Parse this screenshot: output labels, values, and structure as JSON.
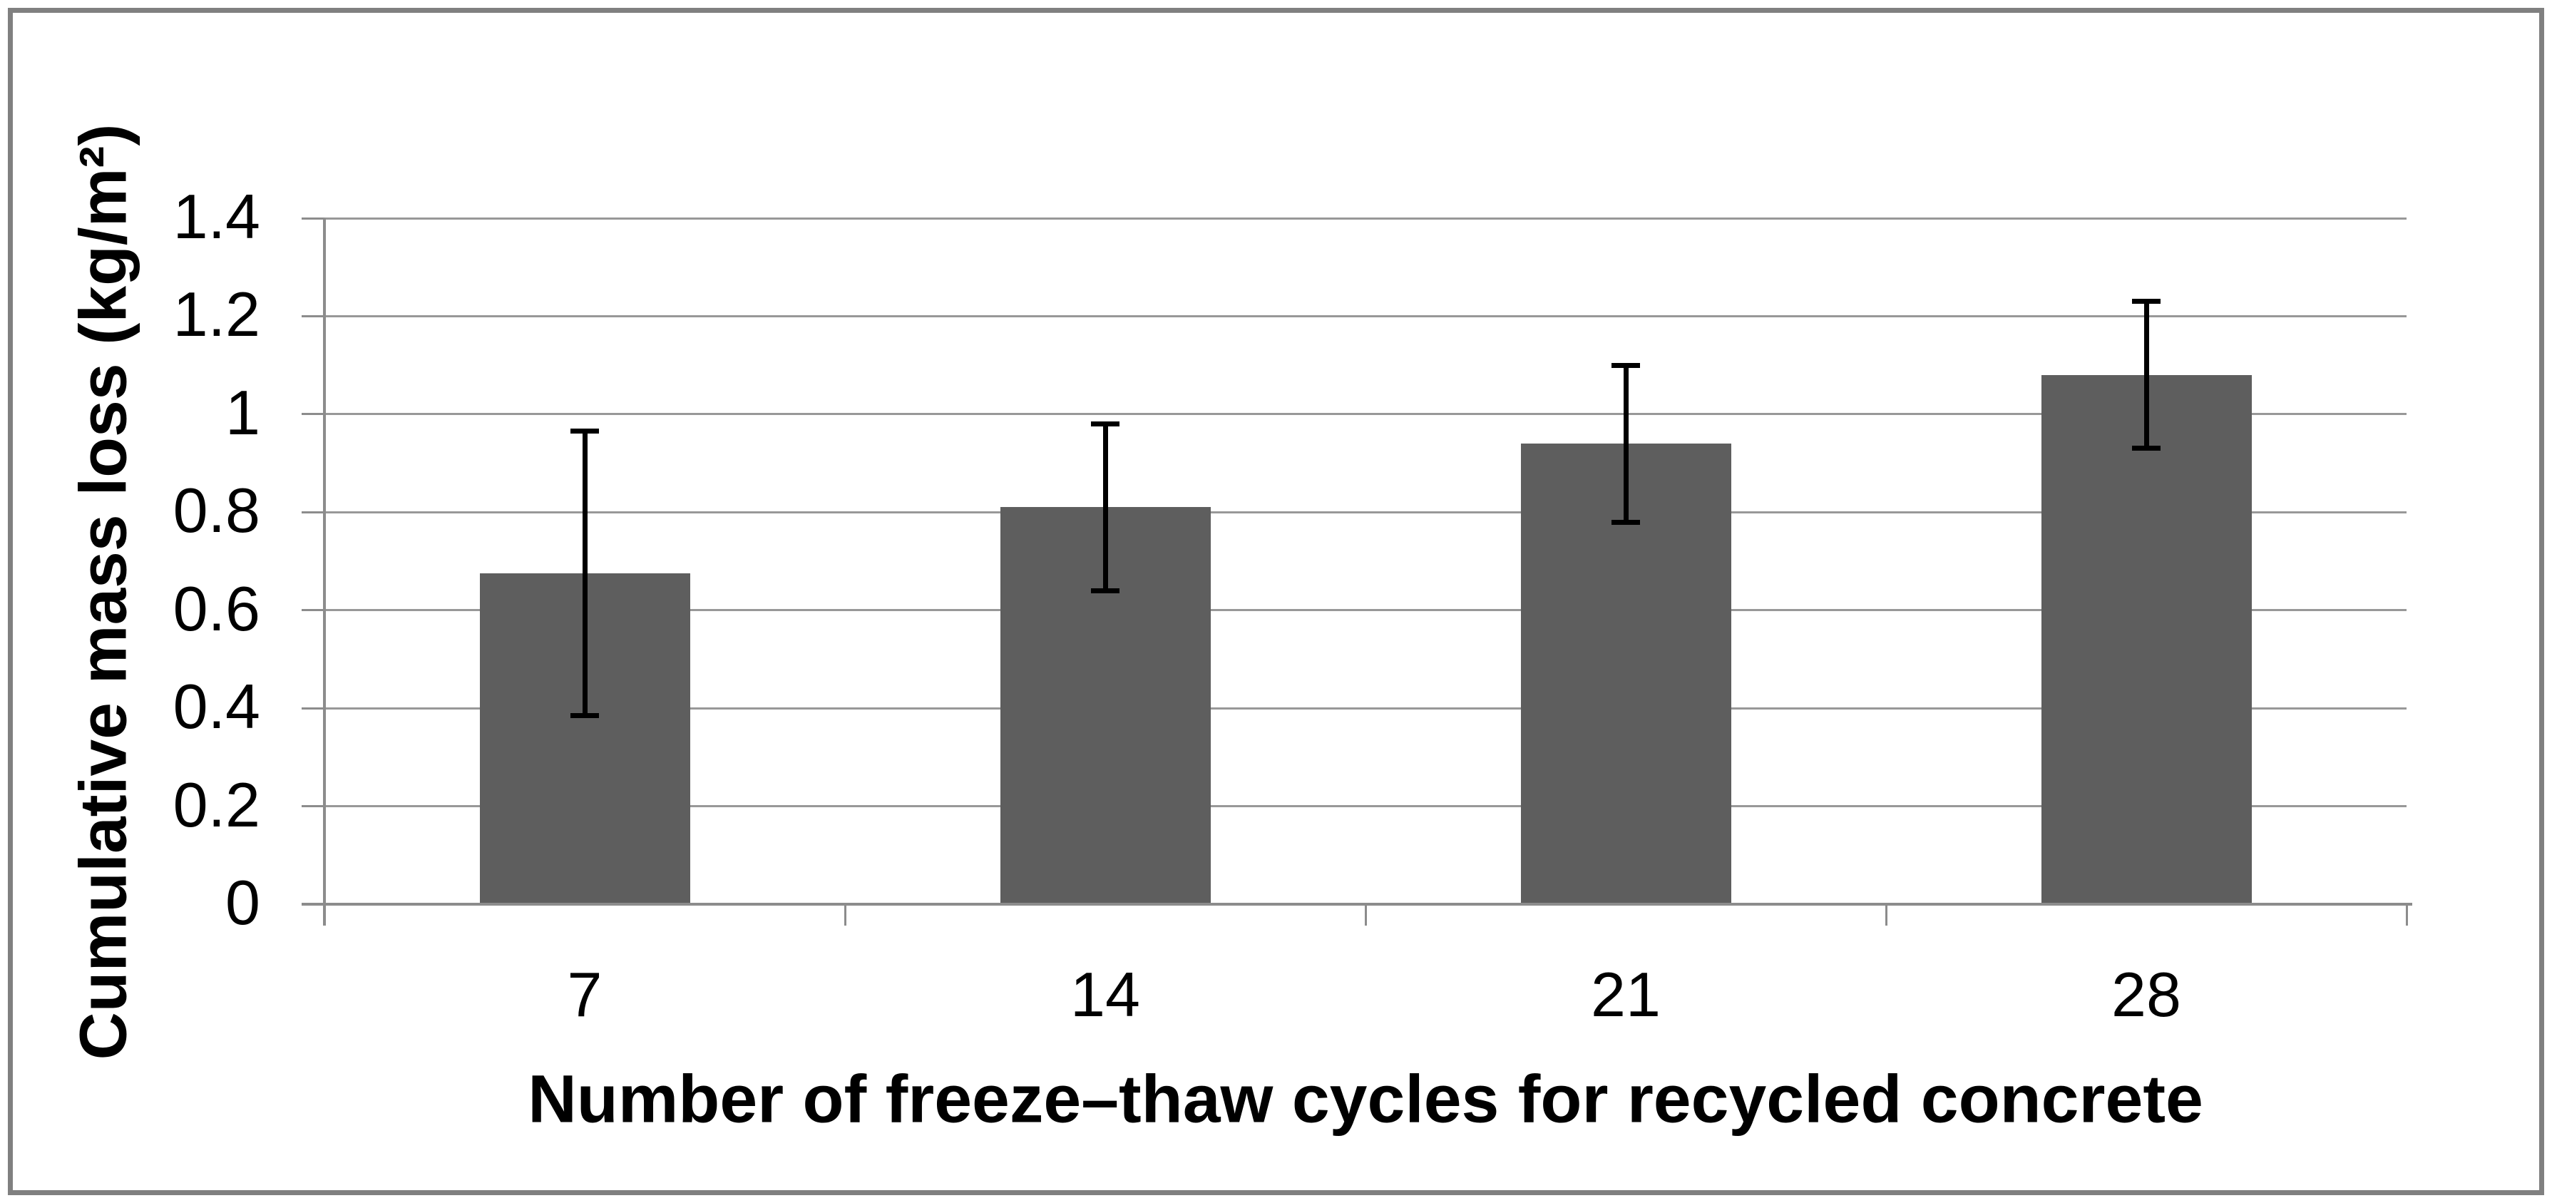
{
  "chart_data": {
    "type": "bar",
    "categories": [
      "7",
      "14",
      "21",
      "28"
    ],
    "values": [
      0.675,
      0.81,
      0.94,
      1.08
    ],
    "error_low": [
      0.385,
      0.64,
      0.78,
      0.93
    ],
    "error_high": [
      0.965,
      0.98,
      1.1,
      1.23
    ],
    "title": "",
    "xlabel": "Number of freeze–thaw cycles for recycled concrete",
    "ylabel": "Cumulative mass loss (kg/m²)",
    "ylim": [
      0,
      1.4
    ],
    "ytick_step": 0.2,
    "ytick_labels": [
      "0",
      "0.2",
      "0.4",
      "0.6",
      "0.8",
      "1",
      "1.2",
      "1.4"
    ],
    "grid": "horizontal",
    "legend": "none",
    "colors": {
      "bar_fill": "#5E5E5E",
      "error_bar": "#000000",
      "gridline": "#989898",
      "axis_line": "#8C8C8C",
      "frame_border": "#808080",
      "background": "#FFFFFF",
      "text": "#000000"
    }
  }
}
